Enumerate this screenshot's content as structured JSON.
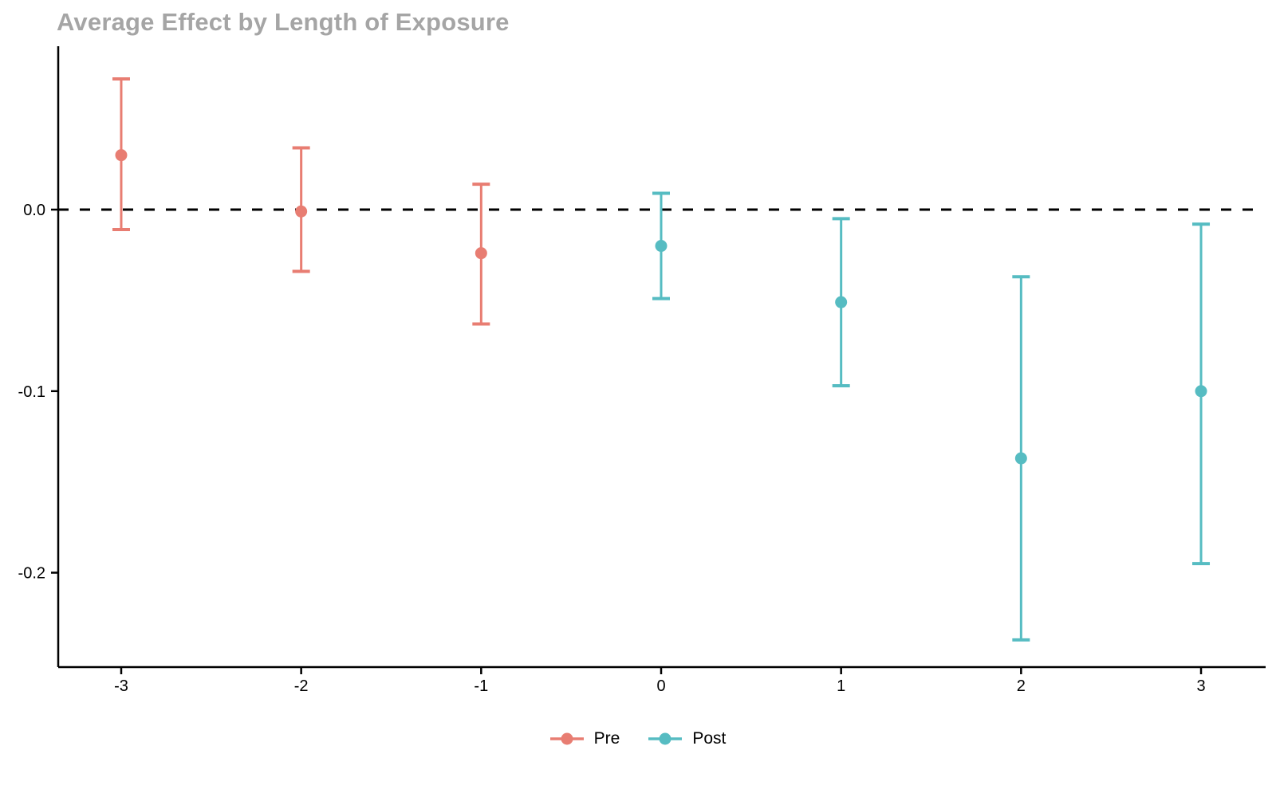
{
  "title": "Average Effect by Length of Exposure",
  "colors": {
    "pre": "#e87d72",
    "post": "#56bcc2",
    "title": "#a5a5a5",
    "axis": "#000000",
    "background": "#ffffff"
  },
  "legend": {
    "position": "bottom",
    "items": [
      {
        "id": "pre",
        "label": "Pre"
      },
      {
        "id": "post",
        "label": "Post"
      }
    ]
  },
  "chart_data": {
    "type": "scatter",
    "subtype": "errorbar-event-study",
    "title": "Average Effect by Length of Exposure",
    "xlabel": "",
    "ylabel": "",
    "x_ticks": [
      -3,
      -2,
      -1,
      0,
      1,
      2,
      3
    ],
    "y_ticks": [
      0.0,
      -0.1,
      -0.2
    ],
    "y_tick_labels": [
      "0.0",
      "-0.1",
      "-0.2"
    ],
    "xlim": [
      -3.35,
      3.35
    ],
    "ylim": [
      -0.252,
      0.09
    ],
    "grid": false,
    "reference_line_y": 0,
    "reference_line_style": "dashed",
    "legend_position": "bottom",
    "series": [
      {
        "name": "Pre",
        "color": "#e87d72",
        "points": [
          {
            "x": -3,
            "y": 0.03,
            "lo": -0.011,
            "hi": 0.072
          },
          {
            "x": -2,
            "y": -0.001,
            "lo": -0.034,
            "hi": 0.034
          },
          {
            "x": -1,
            "y": -0.024,
            "lo": -0.063,
            "hi": 0.014
          }
        ]
      },
      {
        "name": "Post",
        "color": "#56bcc2",
        "points": [
          {
            "x": 0,
            "y": -0.02,
            "lo": -0.049,
            "hi": 0.009
          },
          {
            "x": 1,
            "y": -0.051,
            "lo": -0.097,
            "hi": -0.005
          },
          {
            "x": 2,
            "y": -0.137,
            "lo": -0.237,
            "hi": -0.037
          },
          {
            "x": 3,
            "y": -0.1,
            "lo": -0.195,
            "hi": -0.008
          }
        ]
      }
    ]
  }
}
